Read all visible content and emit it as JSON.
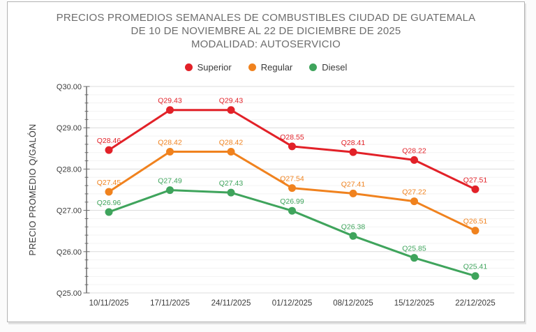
{
  "chart_data": {
    "type": "line",
    "title_lines": [
      "PRECIOS PROMEDIOS SEMANALES DE COMBUSTIBLES CIUDAD DE GUATEMALA",
      "DE 10 DE NOVIEMBRE AL 22 DE DICIEMBRE DE 2025",
      "MODALIDAD: AUTOSERVICIO"
    ],
    "ylabel": "PRECIO PROMEDIO Q/GALÓN",
    "xlabel": "",
    "legend_position": "top",
    "grid": true,
    "x": [
      "10/11/2025",
      "17/11/2025",
      "24/11/2025",
      "01/12/2025",
      "08/12/2025",
      "15/12/2025",
      "22/12/2025"
    ],
    "series": [
      {
        "name": "Superior",
        "color": "#e22128",
        "values": [
          28.46,
          29.43,
          29.43,
          28.55,
          28.41,
          28.22,
          27.51
        ],
        "labels": [
          "Q28.46",
          "Q29.43",
          "Q29.43",
          "Q28.55",
          "Q28.41",
          "Q28.22",
          "Q27.51"
        ]
      },
      {
        "name": "Regular",
        "color": "#f0821e",
        "values": [
          27.45,
          28.42,
          28.42,
          27.54,
          27.41,
          27.22,
          26.51
        ],
        "labels": [
          "Q27.45",
          "Q28.42",
          "Q28.42",
          "Q27.54",
          "Q27.41",
          "Q27.22",
          "Q26.51"
        ]
      },
      {
        "name": "Diesel",
        "color": "#3fa45c",
        "values": [
          26.96,
          27.49,
          27.43,
          26.99,
          26.38,
          25.85,
          25.41
        ],
        "labels": [
          "Q26.96",
          "Q27.49",
          "Q27.43",
          "Q26.99",
          "Q26.38",
          "Q25.85",
          "Q25.41"
        ]
      }
    ],
    "ylim": [
      25,
      30
    ],
    "y_minor_step": 0.2,
    "y_ticks": [
      {
        "value": 30,
        "label": "Q30.00"
      },
      {
        "value": 29,
        "label": "Q29.00"
      },
      {
        "value": 28,
        "label": "Q28.00"
      },
      {
        "value": 27,
        "label": "Q27.00"
      },
      {
        "value": 26,
        "label": "Q26.00"
      },
      {
        "value": 25,
        "label": "Q25.00"
      }
    ]
  }
}
